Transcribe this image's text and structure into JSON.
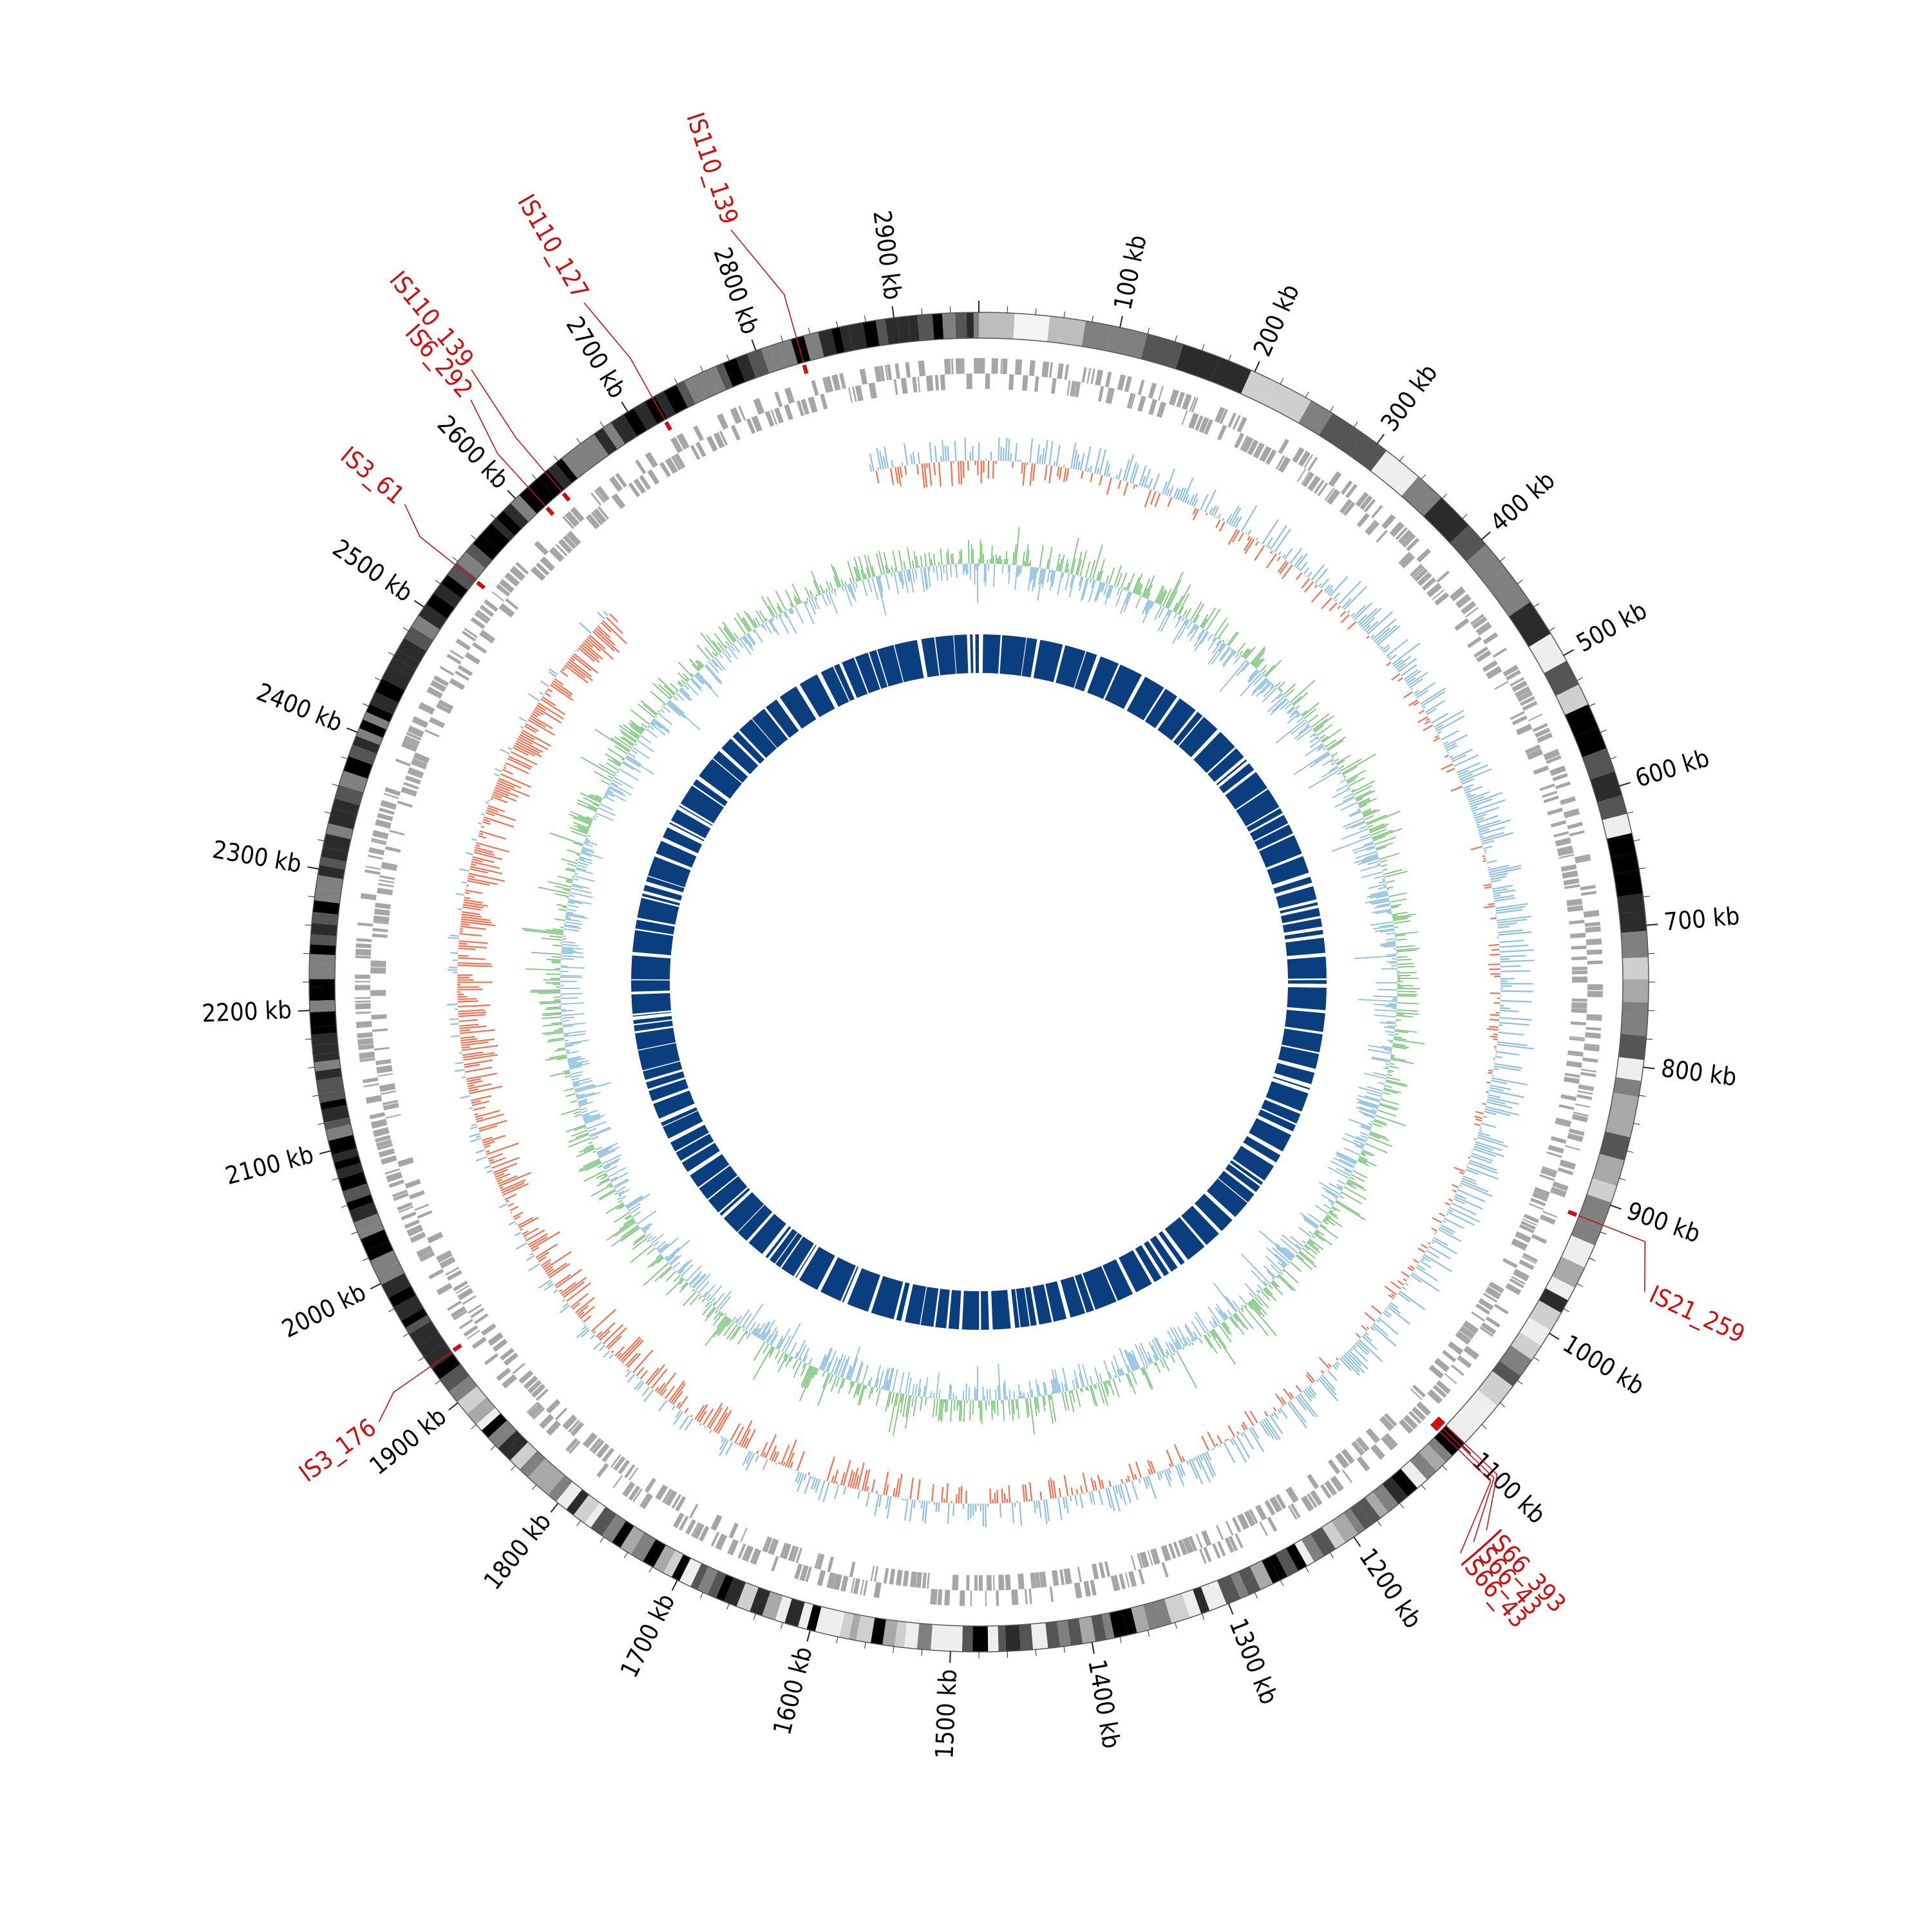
{
  "genome": {
    "length_kb": 2960,
    "unit": "kb"
  },
  "tick_marks": [
    {
      "kb": 100,
      "label": "100 kb"
    },
    {
      "kb": 200,
      "label": "200 kb"
    },
    {
      "kb": 300,
      "label": "300 kb"
    },
    {
      "kb": 400,
      "label": "400 kb"
    },
    {
      "kb": 500,
      "label": "500 kb"
    },
    {
      "kb": 600,
      "label": "600 kb"
    },
    {
      "kb": 700,
      "label": "700 kb"
    },
    {
      "kb": 800,
      "label": "800 kb"
    },
    {
      "kb": 900,
      "label": "900 kb"
    },
    {
      "kb": 1000,
      "label": "1000 kb"
    },
    {
      "kb": 1100,
      "label": "1100 kb"
    },
    {
      "kb": 1200,
      "label": "1200 kb"
    },
    {
      "kb": 1300,
      "label": "1300 kb"
    },
    {
      "kb": 1400,
      "label": "1400 kb"
    },
    {
      "kb": 1500,
      "label": "1500 kb"
    },
    {
      "kb": 1600,
      "label": "1600 kb"
    },
    {
      "kb": 1700,
      "label": "1700 kb"
    },
    {
      "kb": 1800,
      "label": "1800 kb"
    },
    {
      "kb": 1900,
      "label": "1900 kb"
    },
    {
      "kb": 2000,
      "label": "2000 kb"
    },
    {
      "kb": 2100,
      "label": "2100 kb"
    },
    {
      "kb": 2200,
      "label": "2200 kb"
    },
    {
      "kb": 2300,
      "label": "2300 kb"
    },
    {
      "kb": 2400,
      "label": "2400 kb"
    },
    {
      "kb": 2500,
      "label": "2500 kb"
    },
    {
      "kb": 2600,
      "label": "2600 kb"
    },
    {
      "kb": 2700,
      "label": "2700 kb"
    },
    {
      "kb": 2800,
      "label": "2800 kb"
    },
    {
      "kb": 2900,
      "label": "2900 kb"
    }
  ],
  "insertion_sequences": [
    {
      "name": "IS21_259",
      "kb": 915
    },
    {
      "name": "IS66_393",
      "kb": 1098
    },
    {
      "name": "IS66_43",
      "kb": 1101
    },
    {
      "name": "IS66_43",
      "kb": 1104
    },
    {
      "name": "IS3_176",
      "kb": 1932
    },
    {
      "name": "IS3_61",
      "kb": 2537
    },
    {
      "name": "IS6_292",
      "kb": 2612
    },
    {
      "name": "IS110_139",
      "kb": 2628
    },
    {
      "name": "IS110_127",
      "kb": 2720
    },
    {
      "name": "IS110_139",
      "kb": 2830
    }
  ],
  "tracks": {
    "cds": {
      "color": "#a6a6a6",
      "highlight_color": "#cc0000"
    },
    "skew_positive_color": "#8ec0de",
    "skew_negative_color": "#f2704f",
    "gc_color": "#6dbf6d",
    "gc_alt_color": "#7fb7de",
    "inner_ring_color": "#0a3e7e",
    "is_color": "#cc1010"
  }
}
